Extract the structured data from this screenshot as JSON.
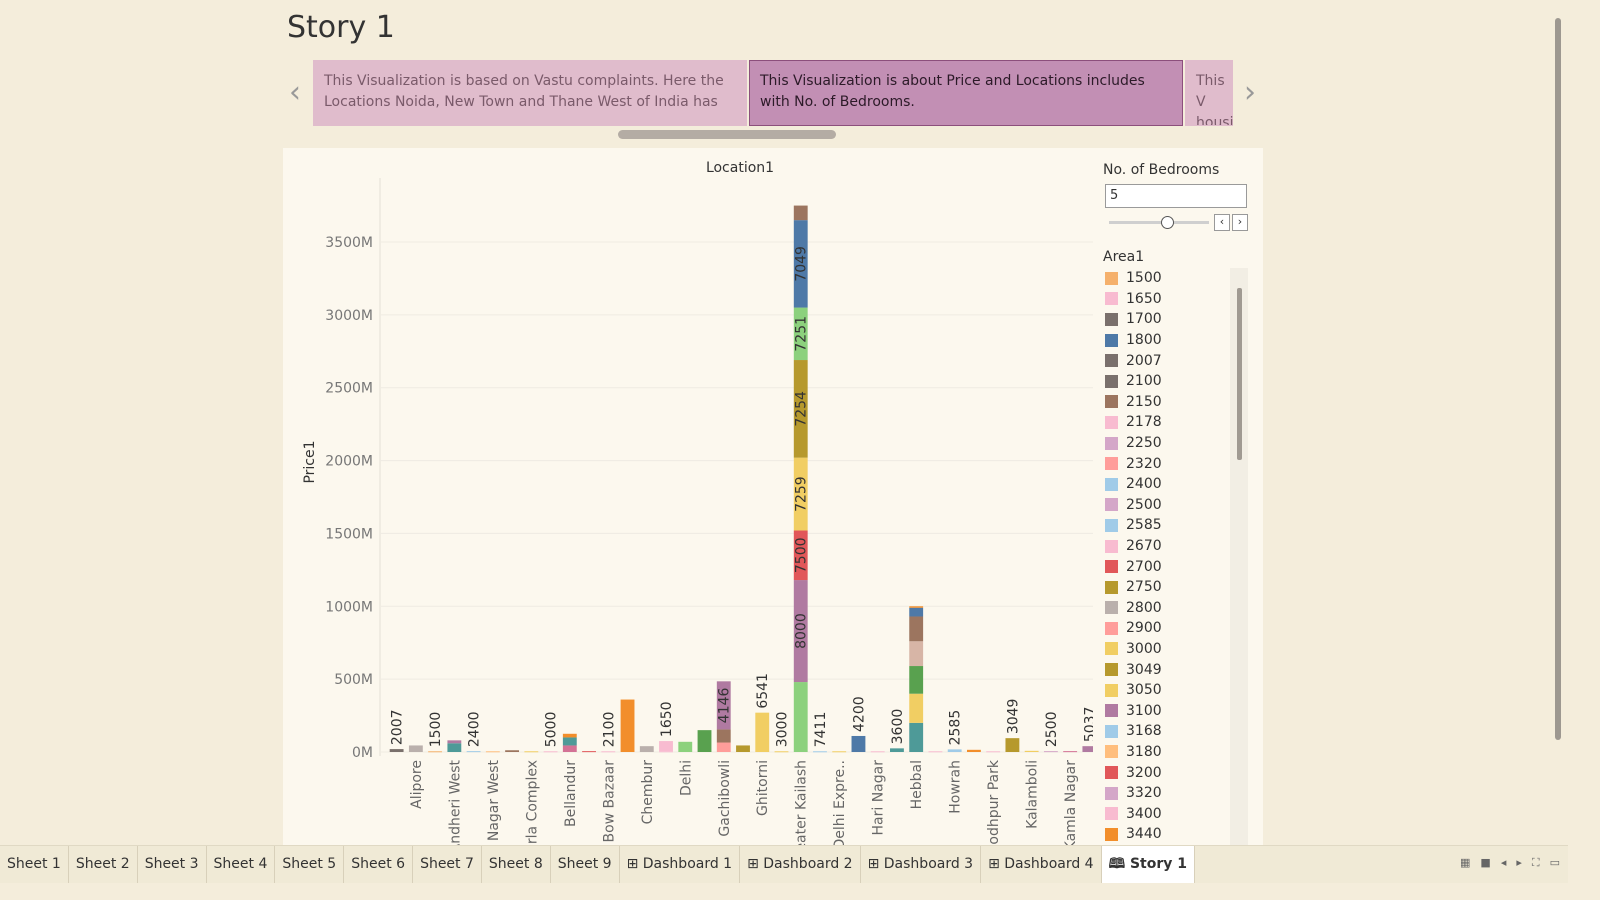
{
  "story_title": "Story 1",
  "captions": [
    {
      "text": "This Visualization is based on Vastu complaints. Here the Locations Noida, New Town and Thane West of India has",
      "state": "inactive"
    },
    {
      "text": "This Visualization is about Price and Locations includes with No. of Bedrooms.",
      "state": "active"
    },
    {
      "text": "This V housi",
      "state": "inactive"
    }
  ],
  "bedroom_filter": {
    "title": "No. of Bedrooms",
    "value": "5"
  },
  "legend": {
    "title": "Area1",
    "items": [
      {
        "label": "1500",
        "color": "#f5b06b"
      },
      {
        "label": "1650",
        "color": "#f8bbd0"
      },
      {
        "label": "1700",
        "color": "#7a706c"
      },
      {
        "label": "1800",
        "color": "#4e79a7"
      },
      {
        "label": "2007",
        "color": "#7a706c"
      },
      {
        "label": "2100",
        "color": "#7a706c"
      },
      {
        "label": "2150",
        "color": "#9c755f"
      },
      {
        "label": "2178",
        "color": "#f8bbd0"
      },
      {
        "label": "2250",
        "color": "#d4a6c8"
      },
      {
        "label": "2320",
        "color": "#ff9d9a"
      },
      {
        "label": "2400",
        "color": "#a0cbe8"
      },
      {
        "label": "2500",
        "color": "#d4a6c8"
      },
      {
        "label": "2585",
        "color": "#a0cbe8"
      },
      {
        "label": "2670",
        "color": "#f8bbd0"
      },
      {
        "label": "2700",
        "color": "#e15759"
      },
      {
        "label": "2750",
        "color": "#b6992d"
      },
      {
        "label": "2800",
        "color": "#bab0ac"
      },
      {
        "label": "2900",
        "color": "#ff9d9a"
      },
      {
        "label": "3000",
        "color": "#f1ce63"
      },
      {
        "label": "3049",
        "color": "#b6992d"
      },
      {
        "label": "3050",
        "color": "#f1ce63"
      },
      {
        "label": "3100",
        "color": "#b07aa1"
      },
      {
        "label": "3168",
        "color": "#a0cbe8"
      },
      {
        "label": "3180",
        "color": "#ffbe7d"
      },
      {
        "label": "3200",
        "color": "#e15759"
      },
      {
        "label": "3320",
        "color": "#d4a6c8"
      },
      {
        "label": "3400",
        "color": "#f8bbd0"
      },
      {
        "label": "3440",
        "color": "#f28e2b"
      }
    ]
  },
  "tabs": [
    {
      "label": "Sheet 1",
      "icon": "",
      "active": false
    },
    {
      "label": "Sheet 2",
      "icon": "",
      "active": false
    },
    {
      "label": "Sheet 3",
      "icon": "",
      "active": false
    },
    {
      "label": "Sheet 4",
      "icon": "",
      "active": false
    },
    {
      "label": "Sheet 5",
      "icon": "",
      "active": false
    },
    {
      "label": "Sheet 6",
      "icon": "",
      "active": false
    },
    {
      "label": "Sheet 7",
      "icon": "",
      "active": false
    },
    {
      "label": "Sheet 8",
      "icon": "",
      "active": false
    },
    {
      "label": "Sheet 9",
      "icon": "",
      "active": false
    },
    {
      "label": "Dashboard 1",
      "icon": "⊞ ",
      "active": false
    },
    {
      "label": "Dashboard 2",
      "icon": "⊞ ",
      "active": false
    },
    {
      "label": "Dashboard 3",
      "icon": "⊞ ",
      "active": false
    },
    {
      "label": "Dashboard 4",
      "icon": "⊞ ",
      "active": false
    },
    {
      "label": "Story 1",
      "icon": "🕮 ",
      "active": true
    }
  ],
  "chart_data": {
    "type": "bar",
    "stacked": true,
    "title": "Location1",
    "ylabel": "Price1",
    "ylim": [
      0,
      3900
    ],
    "y_unit": "M",
    "yticks": [
      "0M",
      "500M",
      "1000M",
      "1500M",
      "2000M",
      "2500M",
      "3000M",
      "3500M"
    ],
    "ytick_values": [
      0,
      500,
      1000,
      1500,
      2000,
      2500,
      3000,
      3500
    ],
    "visible_x_labels": [
      "Alipore",
      "Andheri West",
      "Anna Nagar West",
      "Bandra Kurla Complex",
      "Bellandur",
      "Bow Bazaar",
      "Chembur",
      "Delhi",
      "Gachibowli",
      "Ghitorni",
      "Greater Kailash",
      "Delhi Expre..",
      "Hari Nagar",
      "Hebbal",
      "Howrah",
      "Jodhpur Park",
      "Kalamboli",
      "Kamla Nagar"
    ],
    "bars": [
      {
        "label": "",
        "segments": [
          {
            "v": 20,
            "c": "#7a706c"
          }
        ],
        "top_label": "2007"
      },
      {
        "label": "Alipore",
        "segments": [
          {
            "v": 45,
            "c": "#bab0ac"
          }
        ],
        "top_label": ""
      },
      {
        "label": "",
        "segments": [
          {
            "v": 5,
            "c": "#f5b06b"
          }
        ],
        "top_label": "1500"
      },
      {
        "label": "Andheri West",
        "segments": [
          {
            "v": 60,
            "c": "#4e9a98"
          },
          {
            "v": 20,
            "c": "#b07aa1"
          }
        ],
        "top_label": ""
      },
      {
        "label": "",
        "segments": [
          {
            "v": 6,
            "c": "#a0cbe8"
          }
        ],
        "top_label": "2400"
      },
      {
        "label": "Anna Nagar West",
        "segments": [
          {
            "v": 5,
            "c": "#ffbe7d"
          }
        ],
        "top_label": ""
      },
      {
        "label": "",
        "segments": [
          {
            "v": 12,
            "c": "#9c755f"
          }
        ],
        "top_label": ""
      },
      {
        "label": "Bandra Kurla Complex",
        "segments": [
          {
            "v": 5,
            "c": "#f1ce63"
          }
        ],
        "top_label": ""
      },
      {
        "label": "",
        "segments": [
          {
            "v": 5,
            "c": "#f8bbd0"
          }
        ],
        "top_label": "5000"
      },
      {
        "label": "Bellandur",
        "segments": [
          {
            "v": 45,
            "c": "#d37295"
          },
          {
            "v": 55,
            "c": "#4e9a98"
          },
          {
            "v": 25,
            "c": "#f28e2b"
          }
        ],
        "top_label": ""
      },
      {
        "label": "",
        "segments": [
          {
            "v": 6,
            "c": "#e15759"
          }
        ],
        "top_label": ""
      },
      {
        "label": "Bow Bazaar",
        "segments": [
          {
            "v": 5,
            "c": "#f8bbd0"
          }
        ],
        "top_label": "2100"
      },
      {
        "label": "",
        "segments": [
          {
            "v": 360,
            "c": "#f28e2b"
          }
        ],
        "top_label": ""
      },
      {
        "label": "Chembur",
        "segments": [
          {
            "v": 40,
            "c": "#bab0ac"
          }
        ],
        "top_label": ""
      },
      {
        "label": "",
        "segments": [
          {
            "v": 5,
            "c": "#f8bbd0"
          },
          {
            "v": 70,
            "c": "#f8bbd0"
          }
        ],
        "top_label": "1650"
      },
      {
        "label": "Delhi",
        "segments": [
          {
            "v": 70,
            "c": "#8cd17d"
          }
        ],
        "top_label": ""
      },
      {
        "label": "",
        "segments": [
          {
            "v": 150,
            "c": "#59a14f"
          }
        ],
        "top_label": ""
      },
      {
        "label": "Gachibowli",
        "segments": [
          {
            "v": 65,
            "c": "#ff9d9a"
          },
          {
            "v": 90,
            "c": "#9c755f"
          },
          {
            "v": 330,
            "c": "#b07aa1",
            "label": "4146"
          }
        ],
        "top_label": ""
      },
      {
        "label": "",
        "segments": [
          {
            "v": 45,
            "c": "#b6992d"
          }
        ],
        "top_label": ""
      },
      {
        "label": "Ghitorni",
        "segments": [
          {
            "v": 270,
            "c": "#f1ce63"
          }
        ],
        "top_label": "6541"
      },
      {
        "label": "",
        "segments": [
          {
            "v": 5,
            "c": "#f1ce63"
          }
        ],
        "top_label": "3000"
      },
      {
        "label": "Greater Kailash",
        "segments": [
          {
            "v": 480,
            "c": "#8cd17d"
          },
          {
            "v": 700,
            "c": "#b07aa1",
            "label": "8000"
          },
          {
            "v": 340,
            "c": "#e15759",
            "label": "7500"
          },
          {
            "v": 500,
            "c": "#f1ce63",
            "label": "7259"
          },
          {
            "v": 670,
            "c": "#b6992d",
            "label": "7254"
          },
          {
            "v": 360,
            "c": "#8cd17d",
            "label": "7251"
          },
          {
            "v": 600,
            "c": "#4e79a7",
            "label": "7049"
          },
          {
            "v": 100,
            "c": "#9c755f"
          }
        ],
        "top_label": ""
      },
      {
        "label": "",
        "segments": [
          {
            "v": 5,
            "c": "#a0cbe8"
          }
        ],
        "top_label": "7411"
      },
      {
        "label": "Delhi Expre..",
        "segments": [
          {
            "v": 5,
            "c": "#f1ce63"
          }
        ],
        "top_label": ""
      },
      {
        "label": "",
        "segments": [
          {
            "v": 110,
            "c": "#4e79a7"
          }
        ],
        "top_label": "4200"
      },
      {
        "label": "Hari Nagar",
        "segments": [
          {
            "v": 5,
            "c": "#f8bbd0"
          }
        ],
        "top_label": ""
      },
      {
        "label": "",
        "segments": [
          {
            "v": 25,
            "c": "#4e9a98"
          }
        ],
        "top_label": "3600"
      },
      {
        "label": "Hebbal",
        "segments": [
          {
            "v": 200,
            "c": "#4e9a98"
          },
          {
            "v": 200,
            "c": "#f1ce63"
          },
          {
            "v": 190,
            "c": "#59a14f"
          },
          {
            "v": 170,
            "c": "#d7b5a6"
          },
          {
            "v": 170,
            "c": "#9c755f"
          },
          {
            "v": 60,
            "c": "#4e79a7"
          },
          {
            "v": 10,
            "c": "#f28e2b"
          }
        ],
        "top_label": ""
      },
      {
        "label": "",
        "segments": [
          {
            "v": 5,
            "c": "#f8bbd0"
          }
        ],
        "top_label": ""
      },
      {
        "label": "Howrah",
        "segments": [
          {
            "v": 18,
            "c": "#a0cbe8"
          }
        ],
        "top_label": "2585"
      },
      {
        "label": "",
        "segments": [
          {
            "v": 15,
            "c": "#f28e2b"
          }
        ],
        "top_label": ""
      },
      {
        "label": "Jodhpur Park",
        "segments": [
          {
            "v": 5,
            "c": "#f8bbd0"
          }
        ],
        "top_label": ""
      },
      {
        "label": "",
        "segments": [
          {
            "v": 95,
            "c": "#b6992d"
          }
        ],
        "top_label": "3049"
      },
      {
        "label": "Kalamboli",
        "segments": [
          {
            "v": 8,
            "c": "#f1ce63"
          }
        ],
        "top_label": ""
      },
      {
        "label": "",
        "segments": [
          {
            "v": 6,
            "c": "#d4a6c8"
          }
        ],
        "top_label": "2500"
      },
      {
        "label": "Kamla Nagar",
        "segments": [
          {
            "v": 6,
            "c": "#d37295"
          }
        ],
        "top_label": ""
      },
      {
        "label": "",
        "segments": [
          {
            "v": 40,
            "c": "#b07aa1"
          }
        ],
        "top_label": "5037"
      }
    ]
  }
}
